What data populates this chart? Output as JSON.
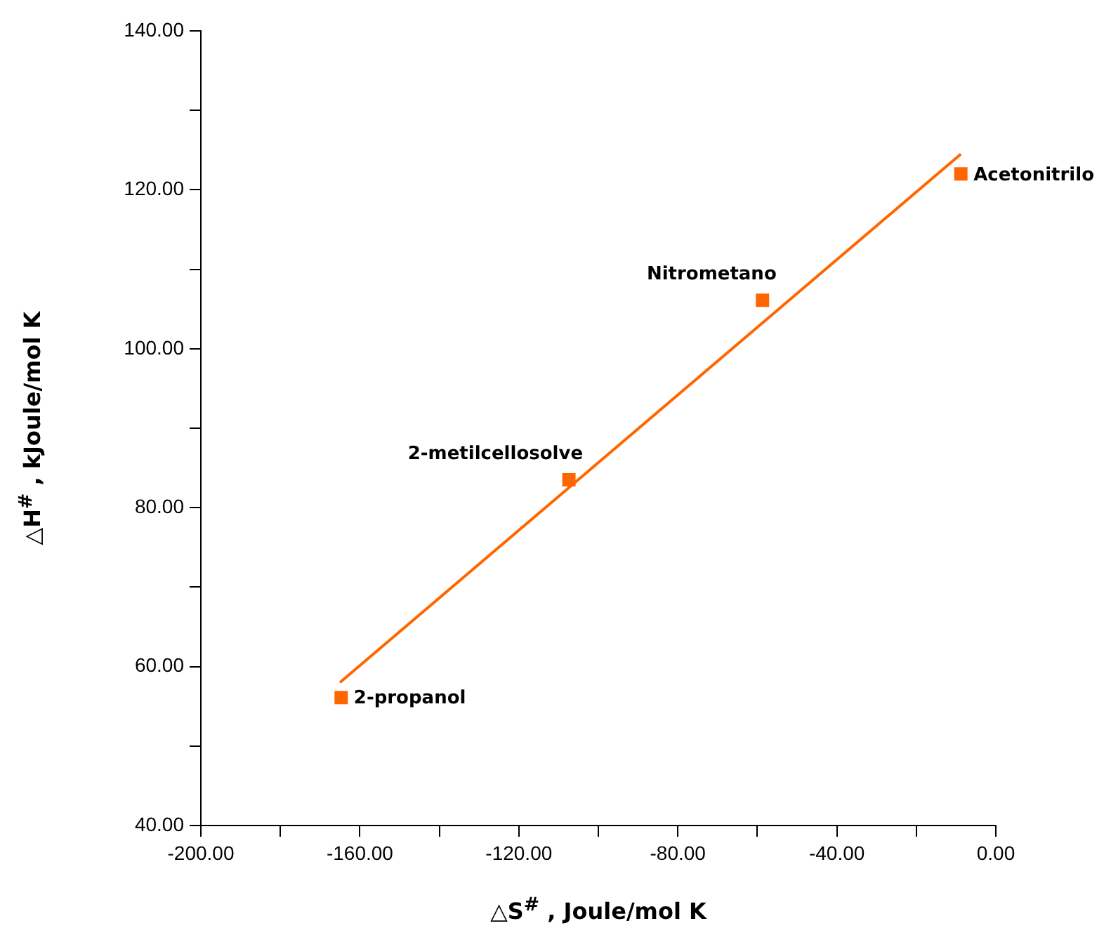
{
  "chart_data": {
    "type": "scatter",
    "xlabel": "△S$^{#}$ , Joule/mol K",
    "ylabel": "△H$^{#}$ , kJoule/mol K",
    "xlim": [
      -200,
      0
    ],
    "ylim": [
      40,
      140
    ],
    "xticks": [
      {
        "value": -200,
        "label": "-200.00"
      },
      {
        "value": -180,
        "label": null
      },
      {
        "value": -160,
        "label": "-160.00"
      },
      {
        "value": -140,
        "label": null
      },
      {
        "value": -120,
        "label": "-120.00"
      },
      {
        "value": -100,
        "label": null
      },
      {
        "value": -80,
        "label": "-80.00"
      },
      {
        "value": -60,
        "label": null
      },
      {
        "value": -40,
        "label": "-40.00"
      },
      {
        "value": -20,
        "label": null
      },
      {
        "value": 0,
        "label": "0.00"
      }
    ],
    "yticks": [
      {
        "value": 40,
        "label": "40.00"
      },
      {
        "value": 50,
        "label": null
      },
      {
        "value": 60,
        "label": "60.00"
      },
      {
        "value": 70,
        "label": null
      },
      {
        "value": 80,
        "label": "80.00"
      },
      {
        "value": 90,
        "label": null
      },
      {
        "value": 100,
        "label": "100.00"
      },
      {
        "value": 110,
        "label": null
      },
      {
        "value": 120,
        "label": "120.00"
      },
      {
        "value": 130,
        "label": null
      },
      {
        "value": 140,
        "label": "140.00"
      }
    ],
    "series": [
      {
        "color": "#ff6600",
        "marker": "square",
        "x": [
          -164.7,
          -107.4,
          -58.7,
          -8.8
        ],
        "values": [
          56.1,
          83.5,
          106.1,
          122.0
        ]
      },
      {
        "type": "line",
        "color": "#ff6600",
        "marker": "none",
        "x": [
          -165,
          -8.8
        ],
        "values": [
          58.0,
          124.5
        ]
      }
    ],
    "annotations": [
      {
        "text": "2-propanol",
        "x": -164.7,
        "y": 56.1
      },
      {
        "text": "2-metilcellosolve",
        "x": -107.4,
        "y": 83.5
      },
      {
        "text": "Nitrometano",
        "x": -58.7,
        "y": 106.1
      },
      {
        "text": "Acetonitrilo",
        "x": -8.8,
        "y": 122.0
      }
    ]
  }
}
